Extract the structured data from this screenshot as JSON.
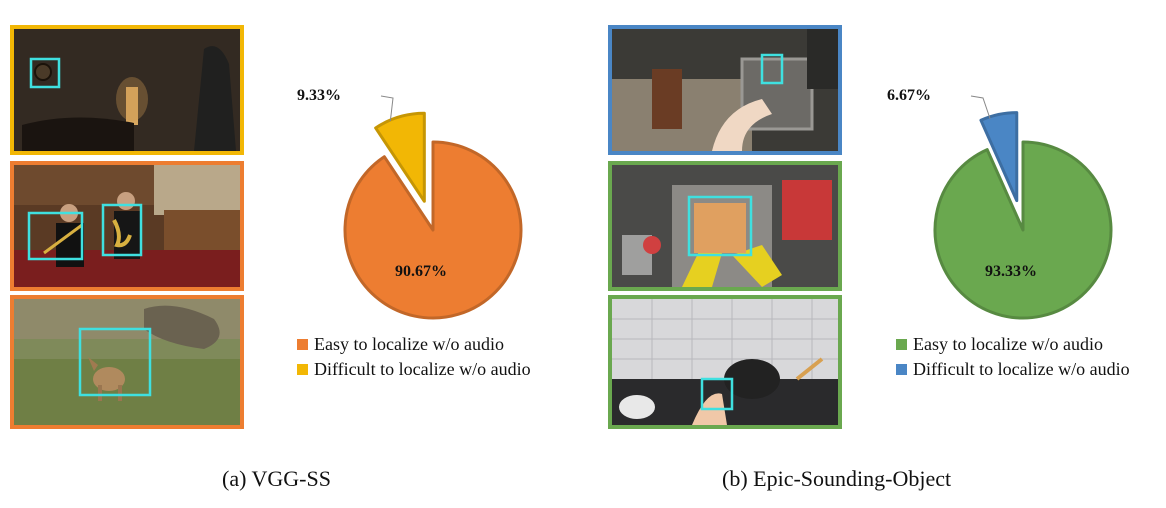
{
  "colors": {
    "orange": "#ED7D31",
    "orange_dark": "#C86A2A",
    "yellow": "#F2B705",
    "yellow_dark": "#C99600",
    "green": "#6AA84F",
    "green_dark": "#559A3C",
    "blue": "#4A86C5",
    "blue_dark": "#2F6BAA",
    "box": "#3FE0E0"
  },
  "panels": [
    {
      "caption": "(a) VGG-SS",
      "frame_colors": [
        "#F2B705",
        "#ED7D31",
        "#ED7D31"
      ],
      "legend": [
        {
          "label": "Easy to localize w/o audio",
          "color": "#ED7D31"
        },
        {
          "label": "Difficult to localize w/o audio",
          "color": "#F2B705"
        }
      ]
    },
    {
      "caption": "(b) Epic-Sounding-Object",
      "frame_colors": [
        "#4A86C5",
        "#6AA84F",
        "#6AA84F"
      ],
      "legend": [
        {
          "label": "Easy to localize w/o audio",
          "color": "#6AA84F"
        },
        {
          "label": "Difficult to localize w/o audio",
          "color": "#4A86C5"
        }
      ]
    }
  ],
  "chart_data": [
    {
      "type": "pie",
      "title": "",
      "categories": [
        "Easy to localize w/o audio",
        "Difficult to localize w/o audio"
      ],
      "values": [
        90.67,
        9.33
      ],
      "labels": [
        "90.67%",
        "9.33%"
      ],
      "colors": [
        "#ED7D31",
        "#F2B705"
      ],
      "exploded": "Difficult to localize w/o audio",
      "legend": "bottom"
    },
    {
      "type": "pie",
      "title": "",
      "categories": [
        "Easy to localize w/o audio",
        "Difficult to localize w/o audio"
      ],
      "values": [
        93.33,
        6.67
      ],
      "labels": [
        "93.33%",
        "6.67%"
      ],
      "colors": [
        "#6AA84F",
        "#4A86C5"
      ],
      "exploded": "Difficult to localize w/o audio",
      "legend": "bottom"
    }
  ]
}
